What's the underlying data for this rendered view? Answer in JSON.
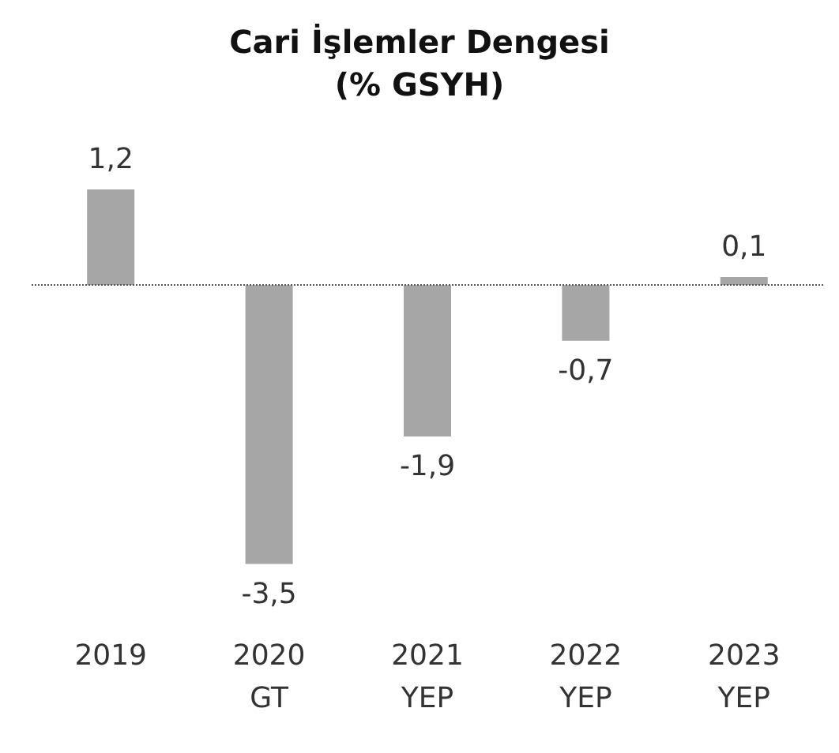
{
  "chart_data": {
    "type": "bar",
    "title": "Cari İşlemler Dengesi\n(% GSYH)",
    "categories": [
      "2019",
      "2020\nGT",
      "2021\nYEP",
      "2022\nYEP",
      "2023\nYEP"
    ],
    "values": [
      1.2,
      -3.5,
      -1.9,
      -0.7,
      0.1
    ],
    "value_labels": [
      "1,2",
      "-3,5",
      "-1,9",
      "-0,7",
      "0,1"
    ],
    "color": "#a6a6a6",
    "ref_lines": [
      {
        "axis": "y",
        "value": 0,
        "color": "#555555",
        "line_style": "dotted"
      }
    ]
  }
}
